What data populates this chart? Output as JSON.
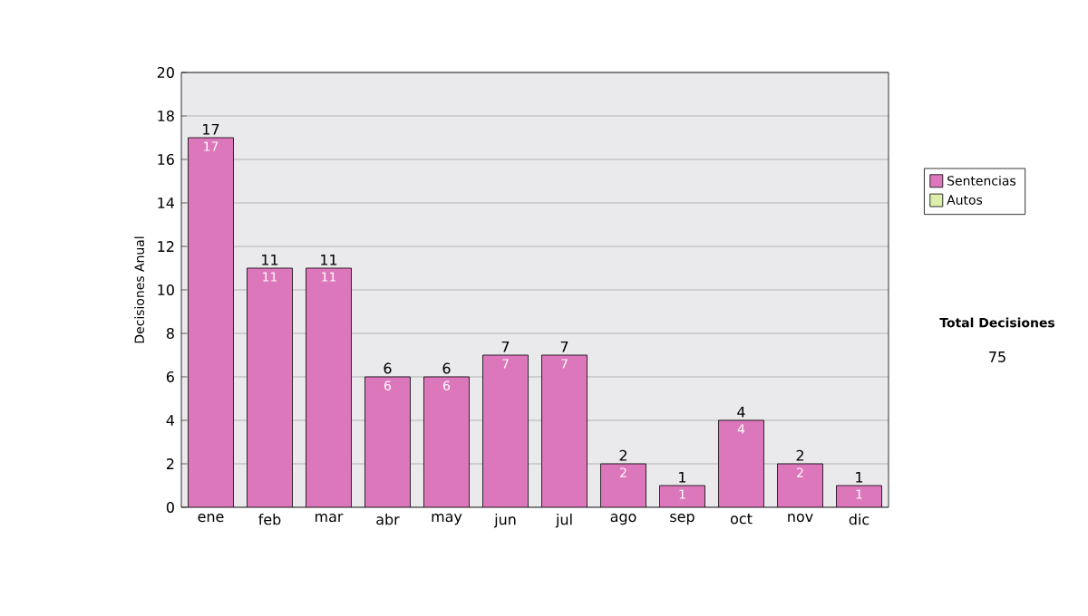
{
  "chart_data": {
    "type": "bar",
    "stacked": true,
    "ylabel": "Decisiones Anual",
    "categories": [
      "ene",
      "feb",
      "mar",
      "abr",
      "may",
      "jun",
      "jul",
      "ago",
      "sep",
      "oct",
      "nov",
      "dic"
    ],
    "series": [
      {
        "name": "Sentencias",
        "color": "#dd77bb",
        "values": [
          17,
          11,
          11,
          6,
          6,
          7,
          7,
          2,
          1,
          4,
          2,
          1
        ],
        "value_labels": [
          "17",
          "11",
          "11",
          "6",
          "6",
          "7",
          "7",
          "2",
          "1",
          "4",
          "2",
          "1"
        ]
      },
      {
        "name": "Autos",
        "color": "#ddeeaa",
        "values": [
          0,
          0,
          0,
          0,
          0,
          0,
          0,
          0,
          0,
          0,
          0,
          0
        ]
      }
    ],
    "totals": [
      "17",
      "11",
      "11",
      "6",
      "6",
      "7",
      "7",
      "2",
      "1",
      "4",
      "2",
      "1"
    ],
    "ylim": [
      0,
      20
    ],
    "yticks": [
      0,
      2,
      4,
      6,
      8,
      10,
      12,
      14,
      16,
      18,
      20
    ],
    "grid": "y",
    "legend": "right",
    "annotations": [
      "Total Decisiones",
      "75"
    ]
  }
}
